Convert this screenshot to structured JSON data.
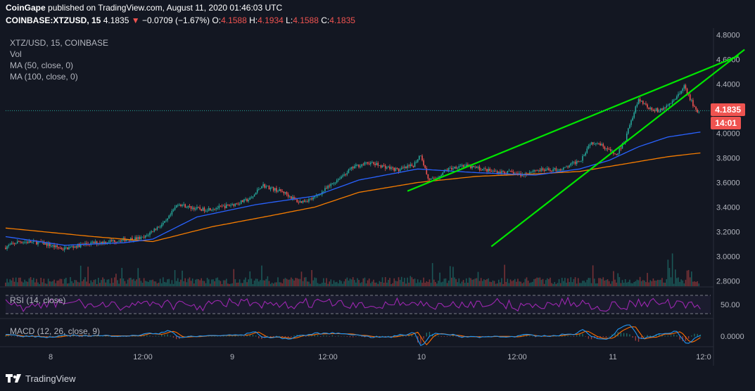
{
  "header": {
    "publisher": "CoinGape",
    "published_text": "published on TradingView.com, August 11, 2020 01:46:03 UTC",
    "symbol": "COINBASE:XTZUSD, 15",
    "last": "4.1835",
    "change": "−0.0709 (−1.67%)",
    "o_label": "O:",
    "o": "4.1588",
    "h_label": "H:",
    "h": "4.1934",
    "l_label": "L:",
    "l": "4.1588",
    "c_label": "C:",
    "c": "4.1835"
  },
  "legend": {
    "pair": "XTZ/USD, 15, COINBASE",
    "vol": "Vol",
    "ma50": "MA (50, close, 0)",
    "ma100": "MA (100, close, 0)"
  },
  "rsi_label": "RSI (14, close)",
  "macd_label": "MACD (12, 26, close, 9)",
  "footer": {
    "brand": "TradingView"
  },
  "price_tag": {
    "price": "4.1835",
    "timer": "14:01"
  },
  "colors": {
    "background": "#131722",
    "up": "#26a69a",
    "down": "#ef5350",
    "ma50": "#2962ff",
    "ma100": "#f57c00",
    "trend": "#00e600",
    "rsi": "#9c27b0",
    "macd": "#2196f3",
    "signal": "#ff6d00"
  },
  "chart_data": {
    "type": "candlestick",
    "symbol": "XTZ/USD",
    "interval": "15",
    "x_ticks": [
      "8",
      "12:00",
      "9",
      "12:00",
      "10",
      "12:00",
      "11",
      "12:0"
    ],
    "y_ticks": [
      "4.8000",
      "4.6000",
      "4.4000",
      "4.2000",
      "4.0000",
      "3.8000",
      "3.6000",
      "3.4000",
      "3.2000",
      "3.0000",
      "2.8000"
    ],
    "ylim": [
      2.78,
      4.82
    ],
    "close_path": [
      [
        0,
        3.07
      ],
      [
        10,
        3.12
      ],
      [
        25,
        3.11
      ],
      [
        40,
        3.06
      ],
      [
        55,
        3.1
      ],
      [
        70,
        3.12
      ],
      [
        85,
        3.14
      ],
      [
        95,
        3.15
      ],
      [
        102,
        3.22
      ],
      [
        110,
        3.28
      ],
      [
        118,
        3.43
      ],
      [
        125,
        3.4
      ],
      [
        135,
        3.38
      ],
      [
        148,
        3.4
      ],
      [
        158,
        3.43
      ],
      [
        168,
        3.47
      ],
      [
        175,
        3.58
      ],
      [
        182,
        3.55
      ],
      [
        190,
        3.52
      ],
      [
        200,
        3.44
      ],
      [
        210,
        3.47
      ],
      [
        220,
        3.56
      ],
      [
        228,
        3.64
      ],
      [
        238,
        3.73
      ],
      [
        248,
        3.76
      ],
      [
        258,
        3.73
      ],
      [
        268,
        3.7
      ],
      [
        278,
        3.74
      ],
      [
        283,
        3.83
      ],
      [
        288,
        3.63
      ],
      [
        292,
        3.62
      ],
      [
        300,
        3.7
      ],
      [
        310,
        3.74
      ],
      [
        320,
        3.72
      ],
      [
        332,
        3.69
      ],
      [
        345,
        3.68
      ],
      [
        352,
        3.66
      ],
      [
        360,
        3.7
      ],
      [
        370,
        3.7
      ],
      [
        380,
        3.71
      ],
      [
        392,
        3.79
      ],
      [
        398,
        3.92
      ],
      [
        403,
        3.93
      ],
      [
        410,
        3.87
      ],
      [
        416,
        3.82
      ],
      [
        422,
        3.95
      ],
      [
        427,
        4.14
      ],
      [
        431,
        4.28
      ],
      [
        436,
        4.22
      ],
      [
        445,
        4.18
      ],
      [
        455,
        4.26
      ],
      [
        462,
        4.38
      ],
      [
        466,
        4.28
      ],
      [
        470,
        4.19
      ],
      [
        472,
        4.18
      ]
    ],
    "ma50_path": [
      [
        0,
        3.16
      ],
      [
        40,
        3.09
      ],
      [
        80,
        3.11
      ],
      [
        100,
        3.14
      ],
      [
        130,
        3.32
      ],
      [
        170,
        3.42
      ],
      [
        210,
        3.49
      ],
      [
        240,
        3.62
      ],
      [
        280,
        3.71
      ],
      [
        320,
        3.68
      ],
      [
        360,
        3.66
      ],
      [
        390,
        3.71
      ],
      [
        410,
        3.78
      ],
      [
        430,
        3.89
      ],
      [
        450,
        3.97
      ],
      [
        472,
        4.01
      ]
    ],
    "ma100_path": [
      [
        0,
        3.23
      ],
      [
        60,
        3.16
      ],
      [
        100,
        3.12
      ],
      [
        140,
        3.24
      ],
      [
        180,
        3.33
      ],
      [
        210,
        3.4
      ],
      [
        240,
        3.52
      ],
      [
        280,
        3.6
      ],
      [
        320,
        3.65
      ],
      [
        360,
        3.67
      ],
      [
        390,
        3.69
      ],
      [
        420,
        3.75
      ],
      [
        450,
        3.81
      ],
      [
        472,
        3.84
      ]
    ],
    "trendlines": [
      {
        "x1": 273,
        "y1": 3.53,
        "x2": 498,
        "y2": 4.63
      },
      {
        "x1": 330,
        "y1": 3.08,
        "x2": 502,
        "y2": 4.68
      }
    ],
    "last_price": 4.1835,
    "rsi_level_text": "50.00",
    "macd_level_text": "0.0000"
  }
}
